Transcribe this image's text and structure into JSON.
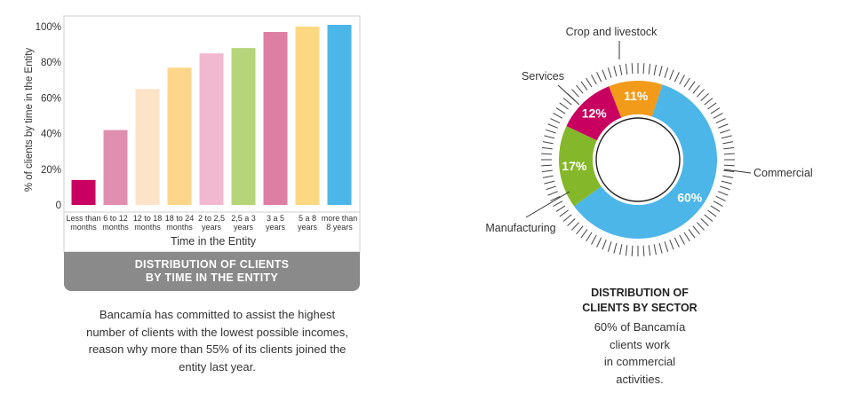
{
  "bar_chart": {
    "box_title": [
      "DISTRIBUTION OF CLIENTS",
      "BY TIME IN THE ENTITY"
    ],
    "description": [
      "Bancamía has committed to assist the highest",
      "number of clients with the lowest possible incomes,",
      "reason why more than 55% of its clients  joined the",
      "entity last year."
    ]
  },
  "pie_chart": {
    "title": [
      "DISTRIBUTION OF",
      "CLIENTS BY SECTOR"
    ],
    "description": [
      "60% of Bancamía",
      "clients work",
      "in commercial",
      "activities."
    ]
  },
  "chart_data": [
    {
      "type": "bar",
      "ylabel": "% of clients by time  in the Entity",
      "xlabel": "Time in the Entity",
      "ylim": [
        0,
        100
      ],
      "yticks": [
        "0",
        "20%",
        "40%",
        "60%",
        "80%",
        "100%"
      ],
      "categories": [
        [
          "Less than",
          "months"
        ],
        [
          "6 to 12",
          "months"
        ],
        [
          "12 to 18",
          "months"
        ],
        [
          "18 to 24",
          "months"
        ],
        [
          "2 to 2,5",
          "years"
        ],
        [
          "2,5 a 3",
          "years"
        ],
        [
          "3 a 5",
          "years"
        ],
        [
          "5 a 8",
          "years"
        ],
        [
          "more than",
          "8 years"
        ]
      ],
      "values": [
        14,
        42,
        65,
        77,
        85,
        88,
        97,
        100,
        101
      ],
      "colors": [
        "#c8005f",
        "#e08fb0",
        "#fde3c8",
        "#fdd68c",
        "#f0b9cf",
        "#b6d47a",
        "#dd7fa2",
        "#fcd882",
        "#4cb6e8"
      ],
      "grid": false
    },
    {
      "type": "pie",
      "style": "donut",
      "slices": [
        {
          "label": "Commercial",
          "value": 60,
          "display": "60%",
          "color": "#4cb6e8"
        },
        {
          "label": "Manufacturing",
          "value": 17,
          "display": "17%",
          "color": "#84b82a"
        },
        {
          "label": "Services",
          "value": 12,
          "display": "12%",
          "color": "#c8005f"
        },
        {
          "label": "Crop and livestock",
          "value": 11,
          "display": "11%",
          "color": "#f29a1a"
        }
      ]
    }
  ]
}
